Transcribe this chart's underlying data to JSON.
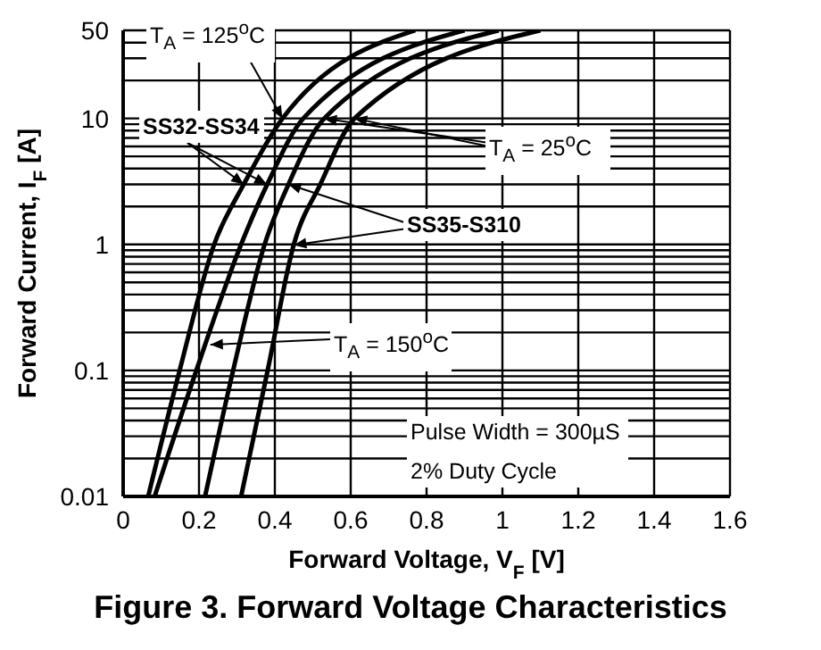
{
  "chart_data": {
    "type": "line",
    "title": "Figure 3. Forward Voltage Characteristics",
    "xlabel": "Forward Voltage, V$_{F}$ [V]",
    "ylabel": "Forward Current, I$_{F}$ [A]",
    "annotations": [
      {
        "text": "T$_{A}$ = 125$^{o}$C",
        "x": 0.42,
        "y": 10
      },
      {
        "text": "SS32-SS34",
        "x": 0.318,
        "y": 3
      },
      {
        "text": "SS35-S310",
        "x": 0.436,
        "y": 3
      },
      {
        "text": "T$_{A}$ = 25$^{o}$C",
        "x": 0.53,
        "y": 10
      },
      {
        "text": "T$_{A}$ = 150$^{o}$C",
        "x": 0.23,
        "y": 0.16
      },
      "Pulse Width = 300µS",
      "2% Duty Cycle"
    ],
    "series": [
      {
        "color": "#000000",
        "x": [
          0.066,
          0.149,
          0.24,
          0.318,
          0.42,
          0.77
        ],
        "values": [
          0.01,
          0.1,
          1,
          3,
          10,
          50
        ]
      },
      {
        "color": "#000000",
        "x": [
          0.083,
          0.193,
          0.311,
          0.38,
          0.475,
          0.9
        ],
        "values": [
          0.01,
          0.1,
          1,
          3,
          10,
          50
        ]
      },
      {
        "color": "#000000",
        "x": [
          0.216,
          0.29,
          0.373,
          0.436,
          0.53,
          0.99
        ],
        "values": [
          0.01,
          0.1,
          1,
          3,
          10,
          50
        ]
      },
      {
        "color": "#000000",
        "x": [
          0.311,
          0.381,
          0.45,
          0.52,
          0.61,
          1.1
        ],
        "values": [
          0.01,
          0.1,
          1,
          3,
          10,
          50
        ]
      }
    ],
    "log": "y",
    "grid": true,
    "marker": "none",
    "line_style": "solid",
    "xlim": [
      0,
      1.6
    ],
    "xticks": [
      0,
      0.2,
      0.4,
      0.6,
      0.8,
      1,
      1.2,
      1.4,
      1.6
    ],
    "ylim": [
      0.01,
      50
    ],
    "yticks": [
      0.01,
      {
        "value": 0.02,
        "label": null
      },
      {
        "value": 0.03,
        "label": null
      },
      {
        "value": 0.04,
        "label": null
      },
      {
        "value": 0.05,
        "label": null
      },
      {
        "value": 0.06,
        "label": null
      },
      {
        "value": 0.07,
        "label": null
      },
      {
        "value": 0.08,
        "label": null
      },
      {
        "value": 0.09,
        "label": null
      },
      0.1,
      {
        "value": 0.2,
        "label": null
      },
      {
        "value": 0.3,
        "label": null
      },
      {
        "value": 0.4,
        "label": null
      },
      {
        "value": 0.5,
        "label": null
      },
      {
        "value": 0.6,
        "label": null
      },
      {
        "value": 0.7,
        "label": null
      },
      {
        "value": 0.8,
        "label": null
      },
      {
        "value": 0.9,
        "label": null
      },
      1,
      {
        "value": 2,
        "label": null
      },
      {
        "value": 3,
        "label": null
      },
      {
        "value": 4,
        "label": null
      },
      {
        "value": 5,
        "label": null
      },
      {
        "value": 6,
        "label": null
      },
      {
        "value": 7,
        "label": null
      },
      {
        "value": 8,
        "label": null
      },
      {
        "value": 9,
        "label": null
      },
      10,
      {
        "value": 20,
        "label": null
      },
      {
        "value": 30,
        "label": null
      },
      {
        "value": 40,
        "label": null
      },
      50
    ]
  }
}
